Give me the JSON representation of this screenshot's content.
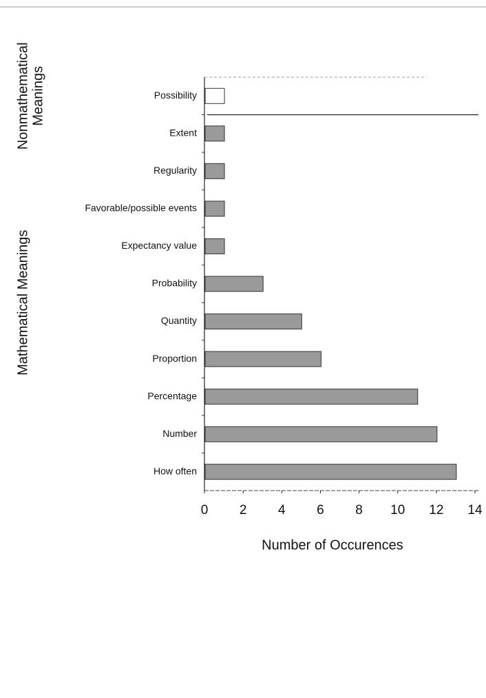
{
  "chart_data": {
    "type": "barh",
    "categories": [
      "Possibility",
      "Extent",
      "Regularity",
      "Favorable/possible events",
      "Expectancy value",
      "Probability",
      "Quantity",
      "Proportion",
      "Percentage",
      "Number",
      "How often"
    ],
    "values": [
      1,
      1,
      1,
      1,
      1,
      3,
      5,
      6,
      11,
      12,
      13
    ],
    "colors": [
      "#ffffff",
      "#9a9a9a",
      "#9a9a9a",
      "#9a9a9a",
      "#9a9a9a",
      "#9a9a9a",
      "#9a9a9a",
      "#9a9a9a",
      "#9a9a9a",
      "#9a9a9a",
      "#9a9a9a"
    ],
    "groups": [
      {
        "name": [
          "Nonmathematical",
          "Meanings"
        ],
        "categories": [
          "Possibility"
        ]
      },
      {
        "name": [
          "Mathematical Meanings"
        ],
        "categories": [
          "Extent",
          "Regularity",
          "Favorable/possible events",
          "Expectancy value",
          "Probability",
          "Quantity",
          "Proportion",
          "Percentage",
          "Number",
          "How often"
        ]
      }
    ],
    "xlabel": "Number of Occurences",
    "xlim": [
      0,
      14
    ],
    "xticks": [
      0,
      2,
      4,
      6,
      8,
      10,
      12,
      14
    ]
  }
}
